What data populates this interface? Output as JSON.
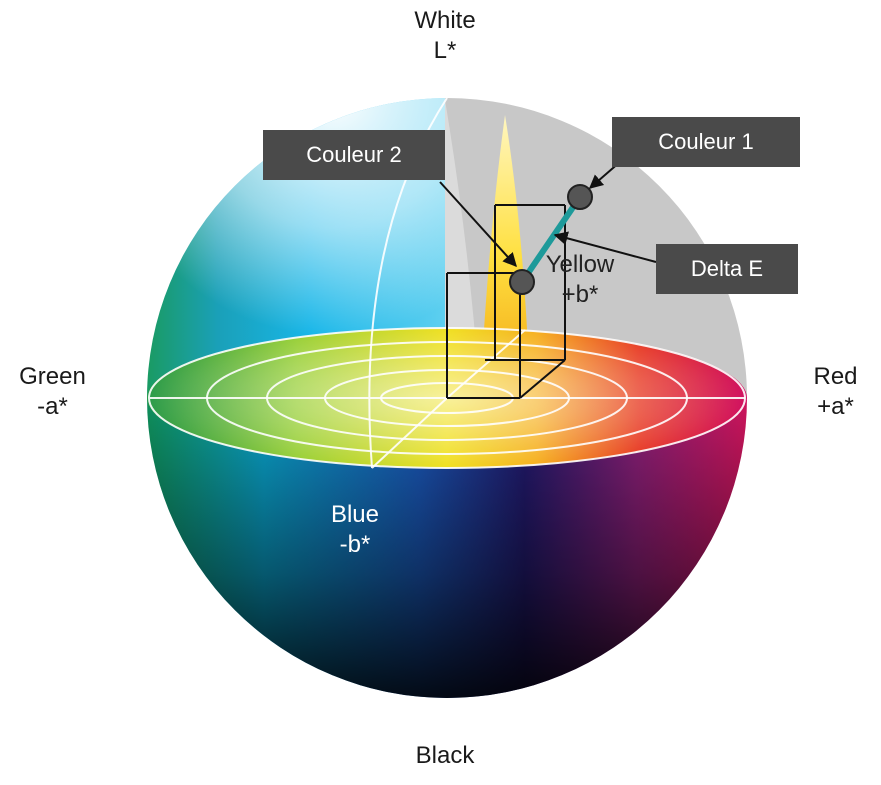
{
  "axes": {
    "white": {
      "name": "White",
      "symbol": "L*"
    },
    "black": {
      "name": "Black"
    },
    "green": {
      "name": "Green",
      "symbol": "-a*"
    },
    "red": {
      "name": "Red",
      "symbol": "+a*"
    },
    "blue": {
      "name": "Blue",
      "symbol": "-b*"
    },
    "yellow": {
      "name": "Yellow",
      "symbol": "+b*"
    }
  },
  "callouts": {
    "color1": "Couleur 1",
    "color2": "Couleur 2",
    "delta": "Delta E"
  },
  "colors": {
    "callout_bg": "#4a4a4a",
    "delta_line": "#1e9a9a",
    "point_fill": "#555555",
    "cutaway_gray": "#c8c8c8"
  }
}
